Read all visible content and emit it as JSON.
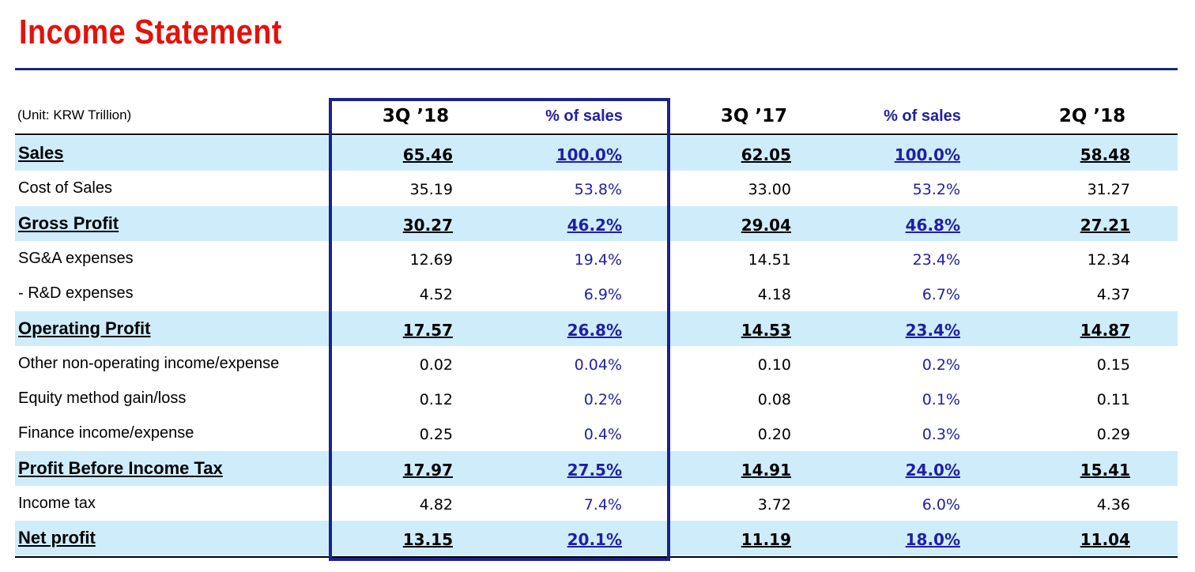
{
  "title": "Income Statement",
  "unit": "(Unit: KRW Trillion)",
  "columns": [
    "3Q ’18",
    "% of sales",
    "3Q ’17",
    "% of sales",
    "2Q ’18"
  ],
  "rows": [
    {
      "label": "Sales",
      "major": true,
      "values": [
        "65.46",
        "100.0%",
        "62.05",
        "100.0%",
        "58.48"
      ]
    },
    {
      "label": "Cost of Sales",
      "major": false,
      "values": [
        "35.19",
        "53.8%",
        "33.00",
        "53.2%",
        "31.27"
      ]
    },
    {
      "label": "Gross Profit",
      "major": true,
      "values": [
        "30.27",
        "46.2%",
        "29.04",
        "46.8%",
        "27.21"
      ]
    },
    {
      "label": "SG&A expenses",
      "major": false,
      "values": [
        "12.69",
        "19.4%",
        "14.51",
        "23.4%",
        "12.34"
      ]
    },
    {
      "label": " - R&D expenses",
      "major": false,
      "values": [
        "4.52",
        "6.9%",
        "4.18",
        "6.7%",
        "4.37"
      ]
    },
    {
      "label": "Operating Profit",
      "major": true,
      "values": [
        "17.57",
        "26.8%",
        "14.53",
        "23.4%",
        "14.87"
      ]
    },
    {
      "label": "Other non-operating income/expense",
      "major": false,
      "values": [
        "0.02",
        "0.04%",
        "0.10",
        "0.2%",
        "0.15"
      ]
    },
    {
      "label": "Equity method gain/loss",
      "major": false,
      "values": [
        "0.12",
        "0.2%",
        "0.08",
        "0.1%",
        "0.11"
      ]
    },
    {
      "label": "Finance income/expense",
      "major": false,
      "values": [
        "0.25",
        "0.4%",
        "0.20",
        "0.3%",
        "0.29"
      ]
    },
    {
      "label": "Profit Before Income Tax",
      "major": true,
      "values": [
        "17.97",
        "27.5%",
        "14.91",
        "24.0%",
        "15.41"
      ]
    },
    {
      "label": "Income tax",
      "major": false,
      "values": [
        "4.82",
        "7.4%",
        "3.72",
        "6.0%",
        "4.36"
      ]
    },
    {
      "label": "Net profit",
      "major": true,
      "values": [
        "13.15",
        "20.1%",
        "11.19",
        "18.0%",
        "11.04"
      ]
    }
  ],
  "colors": {
    "title": "#e3120b",
    "rule": "#1a2a78",
    "highlight_row": "#cfecfb",
    "percent_text": "#1f1fa5",
    "highlight_box": "#1a2290"
  }
}
